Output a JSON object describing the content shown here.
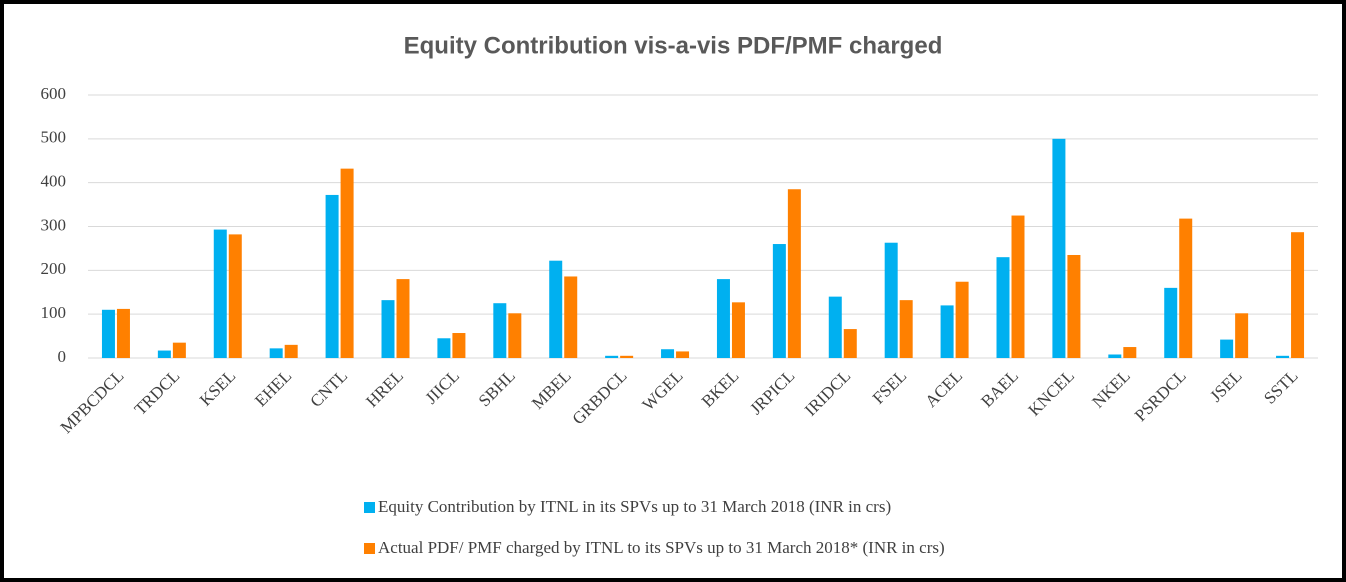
{
  "chart_data": {
    "type": "bar",
    "title": "Equity Contribution vis-a-vis PDF/PMF charged",
    "categories": [
      "MPBCDCL",
      "TRDCL",
      "KSEL",
      "EHEL",
      "CNTL",
      "HREL",
      "JIICL",
      "SBHL",
      "MBEL",
      "GRBDCL",
      "WGEL",
      "BKEL",
      "JRPICL",
      "IRIDCL",
      "FSEL",
      "ACEL",
      "BAEL",
      "KNCEL",
      "NKEL",
      "PSRDCL",
      "JSEL",
      "SSTL"
    ],
    "series": [
      {
        "name": "Equity Contribution by ITNL in its SPVs up to 31 March 2018 (INR in crs)",
        "color": "#00b0f0",
        "values": [
          110,
          17,
          293,
          22,
          372,
          132,
          45,
          125,
          222,
          5,
          20,
          180,
          260,
          140,
          263,
          120,
          230,
          500,
          8,
          160,
          42,
          5
        ]
      },
      {
        "name": "Actual PDF/ PMF charged by ITNL to its SPVs up to 31 March 2018* (INR in crs)",
        "color": "#ff8000",
        "values": [
          112,
          35,
          282,
          30,
          432,
          180,
          57,
          102,
          186,
          5,
          15,
          127,
          385,
          66,
          132,
          174,
          325,
          235,
          25,
          318,
          102,
          287
        ]
      }
    ],
    "ylim": [
      0,
      600
    ],
    "yticks": [
      0,
      100,
      200,
      300,
      400,
      500,
      600
    ],
    "grid": true
  }
}
